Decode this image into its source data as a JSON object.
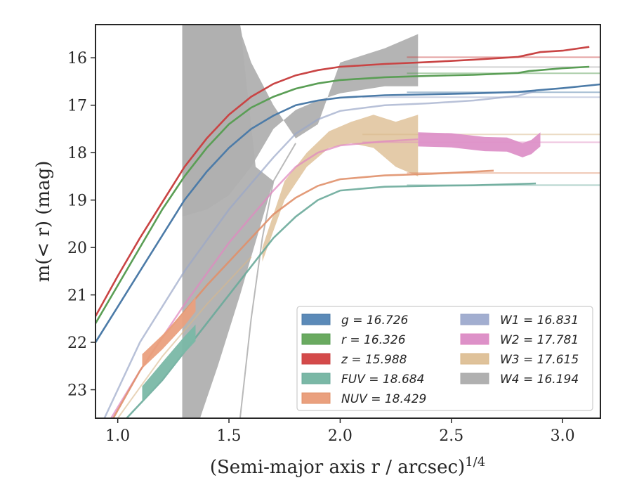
{
  "chart_data": {
    "type": "line",
    "xlabel": "(Semi-major axis r / arcsec)",
    "xlabel_exponent": "1/4",
    "ylabel": "m(< r) (mag)",
    "xlim": [
      0.9,
      3.17
    ],
    "ylim": [
      23.6,
      15.3
    ],
    "y_inverted": true,
    "grid": false,
    "legend_position": "lower-right",
    "x_ticks": [
      "1.0",
      "1.5",
      "2.0",
      "2.5",
      "3.0"
    ],
    "y_ticks": [
      "16",
      "17",
      "18",
      "19",
      "20",
      "21",
      "22",
      "23"
    ],
    "series": [
      {
        "name": "g",
        "legend_value": "g = 16.726",
        "color": "#4c7ba8",
        "fill": "#5b8ab8",
        "points": [
          [
            0.9,
            22.0
          ],
          [
            1.0,
            21.25
          ],
          [
            1.1,
            20.5
          ],
          [
            1.2,
            19.75
          ],
          [
            1.3,
            19.0
          ],
          [
            1.4,
            18.4
          ],
          [
            1.5,
            17.9
          ],
          [
            1.6,
            17.5
          ],
          [
            1.7,
            17.22
          ],
          [
            1.8,
            17.0
          ],
          [
            1.9,
            16.9
          ],
          [
            2.0,
            16.84
          ],
          [
            2.2,
            16.79
          ],
          [
            2.4,
            16.77
          ],
          [
            2.6,
            16.75
          ],
          [
            2.8,
            16.72
          ],
          [
            3.0,
            16.64
          ],
          [
            3.17,
            16.56
          ]
        ],
        "total_line": 16.726,
        "total_start_x": 2.3
      },
      {
        "name": "r",
        "legend_value": "r = 16.326",
        "color": "#5a9e55",
        "fill": "#6aaa60",
        "points": [
          [
            0.9,
            21.6
          ],
          [
            1.0,
            20.8
          ],
          [
            1.1,
            20.0
          ],
          [
            1.2,
            19.2
          ],
          [
            1.3,
            18.5
          ],
          [
            1.4,
            17.9
          ],
          [
            1.5,
            17.4
          ],
          [
            1.6,
            17.05
          ],
          [
            1.7,
            16.82
          ],
          [
            1.8,
            16.65
          ],
          [
            1.9,
            16.54
          ],
          [
            2.0,
            16.47
          ],
          [
            2.2,
            16.41
          ],
          [
            2.4,
            16.38
          ],
          [
            2.6,
            16.36
          ],
          [
            2.8,
            16.32
          ],
          [
            2.85,
            16.28
          ],
          [
            3.0,
            16.22
          ],
          [
            3.12,
            16.19
          ]
        ],
        "total_line": 16.326,
        "total_start_x": 2.3
      },
      {
        "name": "z",
        "legend_value": "z = 15.988",
        "color": "#c94444",
        "fill": "#d44a4a",
        "points": [
          [
            0.9,
            21.45
          ],
          [
            1.0,
            20.6
          ],
          [
            1.1,
            19.8
          ],
          [
            1.2,
            19.05
          ],
          [
            1.3,
            18.3
          ],
          [
            1.4,
            17.7
          ],
          [
            1.5,
            17.2
          ],
          [
            1.6,
            16.82
          ],
          [
            1.7,
            16.55
          ],
          [
            1.8,
            16.37
          ],
          [
            1.9,
            16.26
          ],
          [
            2.0,
            16.19
          ],
          [
            2.2,
            16.13
          ],
          [
            2.4,
            16.09
          ],
          [
            2.6,
            16.04
          ],
          [
            2.8,
            15.98
          ],
          [
            2.9,
            15.88
          ],
          [
            3.0,
            15.85
          ],
          [
            3.12,
            15.77
          ]
        ],
        "total_line": 15.988,
        "total_start_x": 2.3
      },
      {
        "name": "FUV",
        "legend_value": "FUV = 18.684",
        "color": "#6aaa9a",
        "fill": "#7ab8a6",
        "band_width_mag": 0.35,
        "model_points": [
          [
            1.04,
            23.6
          ],
          [
            1.2,
            22.8
          ],
          [
            1.4,
            21.6
          ],
          [
            1.6,
            20.4
          ],
          [
            1.7,
            19.8
          ],
          [
            1.8,
            19.35
          ],
          [
            1.9,
            19.0
          ],
          [
            2.0,
            18.8
          ],
          [
            2.2,
            18.72
          ],
          [
            2.4,
            18.7
          ],
          [
            2.6,
            18.69
          ],
          [
            2.88,
            18.65
          ]
        ],
        "band_points": [
          [
            1.11,
            23.1
          ],
          [
            1.2,
            22.6
          ],
          [
            1.3,
            22.05
          ],
          [
            1.35,
            21.8
          ]
        ],
        "total_line": 18.684,
        "total_start_x": 2.3
      },
      {
        "name": "NUV",
        "legend_value": "NUV = 18.429",
        "color": "#e0906a",
        "fill": "#eaa07e",
        "band_width_mag": 0.3,
        "model_points": [
          [
            0.98,
            23.6
          ],
          [
            1.1,
            22.6
          ],
          [
            1.2,
            21.9
          ],
          [
            1.4,
            20.8
          ],
          [
            1.6,
            19.8
          ],
          [
            1.7,
            19.3
          ],
          [
            1.8,
            18.95
          ],
          [
            1.9,
            18.7
          ],
          [
            2.0,
            18.56
          ],
          [
            2.2,
            18.48
          ],
          [
            2.4,
            18.45
          ],
          [
            2.69,
            18.38
          ]
        ],
        "band_points": [
          [
            1.11,
            22.4
          ],
          [
            1.2,
            22.0
          ],
          [
            1.3,
            21.5
          ],
          [
            1.35,
            21.2
          ]
        ],
        "total_line": 18.429,
        "total_start_x": 2.3
      },
      {
        "name": "W1",
        "legend_value": "W1 = 16.831",
        "color": "#9aa6c8",
        "fill": "#a2aed0",
        "points": [
          [
            0.94,
            23.6
          ],
          [
            1.1,
            22.0
          ],
          [
            1.3,
            20.5
          ],
          [
            1.5,
            19.2
          ],
          [
            1.7,
            18.1
          ],
          [
            1.8,
            17.6
          ],
          [
            1.9,
            17.3
          ],
          [
            2.0,
            17.12
          ],
          [
            2.2,
            17.0
          ],
          [
            2.4,
            16.96
          ],
          [
            2.6,
            16.9
          ],
          [
            2.8,
            16.8
          ],
          [
            2.88,
            16.7
          ]
        ],
        "total_line": 16.831,
        "total_start_x": 2.1
      },
      {
        "name": "W2",
        "legend_value": "W2 = 17.781",
        "color": "#e08ac0",
        "fill": "#dd91c8",
        "band_width_mag": 0.15,
        "points": [
          [
            0.97,
            23.6
          ],
          [
            1.1,
            22.6
          ],
          [
            1.3,
            21.2
          ],
          [
            1.5,
            19.9
          ],
          [
            1.7,
            18.8
          ],
          [
            1.8,
            18.3
          ],
          [
            1.9,
            18.0
          ],
          [
            2.0,
            17.85
          ],
          [
            2.2,
            17.76
          ],
          [
            2.35,
            17.72
          ],
          [
            2.5,
            17.74
          ],
          [
            2.65,
            17.82
          ],
          [
            2.75,
            17.83
          ],
          [
            2.82,
            17.95
          ],
          [
            2.86,
            17.88
          ],
          [
            2.9,
            17.72
          ]
        ],
        "band_start_x": 2.35,
        "total_line": 17.781,
        "total_start_x": 2.1
      },
      {
        "name": "W3",
        "legend_value": "W3 = 17.615",
        "color": "#d8b88a",
        "fill": "#dfc29a",
        "upper": [
          [
            1.65,
            20.0
          ],
          [
            1.75,
            18.6
          ],
          [
            1.85,
            18.0
          ],
          [
            1.95,
            17.55
          ],
          [
            2.05,
            17.35
          ],
          [
            2.15,
            17.2
          ],
          [
            2.25,
            17.35
          ],
          [
            2.35,
            17.2
          ]
        ],
        "lower": [
          [
            1.65,
            20.3
          ],
          [
            1.75,
            19.0
          ],
          [
            1.85,
            18.3
          ],
          [
            1.95,
            17.9
          ],
          [
            2.05,
            17.8
          ],
          [
            2.15,
            17.9
          ],
          [
            2.25,
            18.3
          ],
          [
            2.35,
            18.5
          ]
        ],
        "model_points": [
          [
            1.0,
            23.6
          ],
          [
            1.2,
            22.3
          ],
          [
            1.4,
            21.2
          ],
          [
            1.6,
            20.2
          ]
        ],
        "total_line": 17.615,
        "total_start_x": 2.1
      },
      {
        "name": "W4",
        "legend_value": "W4 = 16.194",
        "color": "#a8a8a8",
        "fill": "#b0b0b0",
        "upper": [
          [
            1.29,
            15.3
          ],
          [
            1.55,
            15.3
          ],
          [
            1.56,
            15.55
          ],
          [
            1.6,
            16.1
          ],
          [
            1.7,
            17.0
          ],
          [
            1.8,
            17.7
          ],
          [
            1.9,
            17.4
          ],
          [
            2.0,
            16.1
          ],
          [
            2.1,
            15.95
          ],
          [
            2.2,
            15.8
          ],
          [
            2.35,
            15.5
          ]
        ],
        "lower": [
          [
            1.29,
            19.35
          ],
          [
            1.4,
            19.2
          ],
          [
            1.5,
            18.9
          ],
          [
            1.6,
            18.3
          ],
          [
            1.7,
            17.5
          ],
          [
            1.8,
            17.1
          ],
          [
            1.9,
            16.9
          ],
          [
            2.0,
            16.75
          ],
          [
            2.2,
            16.6
          ],
          [
            2.35,
            16.6
          ]
        ],
        "left_shell": [
          [
            1.29,
            15.3
          ],
          [
            1.29,
            23.6
          ],
          [
            1.37,
            23.6
          ],
          [
            1.45,
            22.5
          ],
          [
            1.55,
            21.0
          ],
          [
            1.6,
            20.2
          ]
        ],
        "model_points": [
          [
            1.55,
            23.6
          ],
          [
            1.6,
            21.5
          ],
          [
            1.65,
            19.8
          ],
          [
            1.7,
            18.6
          ],
          [
            1.8,
            17.8
          ]
        ],
        "total_line": 16.194,
        "total_start_x": 2.1
      }
    ]
  }
}
